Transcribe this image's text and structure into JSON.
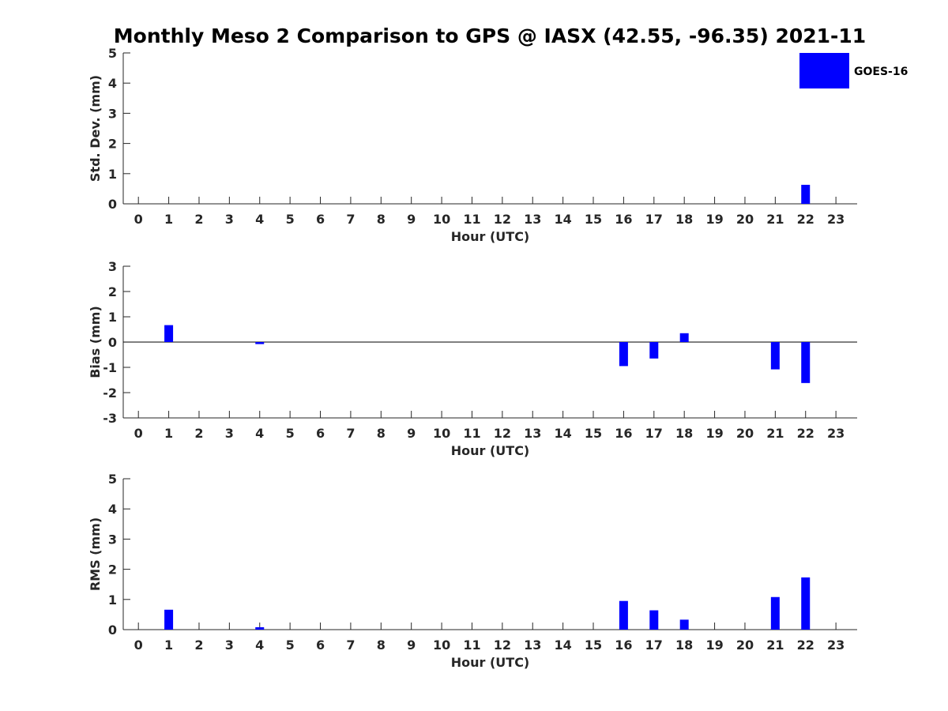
{
  "title": "Monthly Meso 2 Comparison to GPS @ IASX (42.55, -96.35) 2021-11",
  "legend": {
    "label": "GOES-16",
    "color": "#0000ff",
    "placement": "top-right"
  },
  "colors": {
    "bar": "#0000ff",
    "axis": "#262626",
    "zero_line": "#000000"
  },
  "chart_data": [
    {
      "type": "bar",
      "title": "",
      "xlabel": "Hour (UTC)",
      "ylabel": "Std. Dev. (mm)",
      "xlim": [
        -0.5,
        23.7
      ],
      "ylim": [
        0,
        5
      ],
      "yticks": [
        0,
        1,
        2,
        3,
        4,
        5
      ],
      "xticks": [
        0,
        1,
        2,
        3,
        4,
        5,
        6,
        7,
        8,
        9,
        10,
        11,
        12,
        13,
        14,
        15,
        16,
        17,
        18,
        19,
        20,
        21,
        22,
        23
      ],
      "series": [
        {
          "name": "GOES-16",
          "x": [
            22
          ],
          "values": [
            0.63
          ]
        }
      ]
    },
    {
      "type": "bar",
      "title": "",
      "xlabel": "Hour (UTC)",
      "ylabel": "Bias (mm)",
      "xlim": [
        -0.5,
        23.7
      ],
      "ylim": [
        -3,
        3
      ],
      "yticks": [
        -3,
        -2,
        -1,
        0,
        1,
        2,
        3
      ],
      "xticks": [
        0,
        1,
        2,
        3,
        4,
        5,
        6,
        7,
        8,
        9,
        10,
        11,
        12,
        13,
        14,
        15,
        16,
        17,
        18,
        19,
        20,
        21,
        22,
        23
      ],
      "zero_line": true,
      "series": [
        {
          "name": "GOES-16",
          "x": [
            1,
            4,
            16,
            17,
            18,
            21,
            22
          ],
          "values": [
            0.67,
            -0.08,
            -0.95,
            -0.65,
            0.35,
            -1.08,
            -1.62
          ]
        }
      ]
    },
    {
      "type": "bar",
      "title": "",
      "xlabel": "Hour (UTC)",
      "ylabel": "RMS (mm)",
      "xlim": [
        -0.5,
        23.7
      ],
      "ylim": [
        0,
        5
      ],
      "yticks": [
        0,
        1,
        2,
        3,
        4,
        5
      ],
      "xticks": [
        0,
        1,
        2,
        3,
        4,
        5,
        6,
        7,
        8,
        9,
        10,
        11,
        12,
        13,
        14,
        15,
        16,
        17,
        18,
        19,
        20,
        21,
        22,
        23
      ],
      "series": [
        {
          "name": "GOES-16",
          "x": [
            1,
            4,
            16,
            17,
            18,
            21,
            22
          ],
          "values": [
            0.66,
            0.08,
            0.95,
            0.64,
            0.33,
            1.08,
            1.73
          ]
        }
      ]
    }
  ]
}
